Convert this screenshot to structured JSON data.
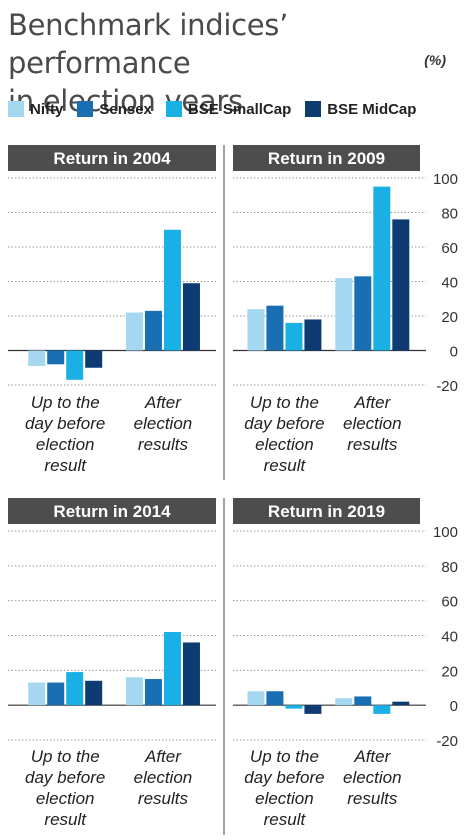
{
  "header": {
    "title_line1": "Benchmark indices’ performance",
    "title_line2": "in election years",
    "unit": "(%)"
  },
  "legend": [
    {
      "label": "Nifty",
      "color": "#a6d7f0"
    },
    {
      "label": "Sensex",
      "color": "#1a6fb3"
    },
    {
      "label": "BSE SmallCap",
      "color": "#1ab0e6"
    },
    {
      "label": "BSE MidCap",
      "color": "#0f3b73"
    }
  ],
  "chart_data": [
    {
      "type": "bar",
      "title": "Return in 2004",
      "categories": [
        "Up to the day before election result",
        "After election results"
      ],
      "category_lines": [
        [
          "Up to the",
          "day before",
          "election",
          "result"
        ],
        [
          "After",
          "election",
          "results"
        ]
      ],
      "series": [
        {
          "name": "Nifty",
          "values": [
            -9,
            22
          ]
        },
        {
          "name": "Sensex",
          "values": [
            -8,
            23
          ]
        },
        {
          "name": "BSE SmallCap",
          "values": [
            -17,
            70
          ]
        },
        {
          "name": "BSE MidCap",
          "values": [
            -10,
            39
          ]
        }
      ],
      "ylim": [
        -20,
        100
      ],
      "yticks": [
        "100",
        "80",
        "60",
        "40",
        "20",
        "0",
        "-20"
      ],
      "grid": true
    },
    {
      "type": "bar",
      "title": "Return in 2009",
      "categories": [
        "Up to the day before election result",
        "After election results"
      ],
      "category_lines": [
        [
          "Up to the",
          "day before",
          "election",
          "result"
        ],
        [
          "After",
          "election",
          "results"
        ]
      ],
      "series": [
        {
          "name": "Nifty",
          "values": [
            24,
            42
          ]
        },
        {
          "name": "Sensex",
          "values": [
            26,
            43
          ]
        },
        {
          "name": "BSE SmallCap",
          "values": [
            16,
            95
          ]
        },
        {
          "name": "BSE MidCap",
          "values": [
            18,
            76
          ]
        }
      ],
      "ylim": [
        -20,
        100
      ],
      "yticks": [
        "100",
        "80",
        "60",
        "40",
        "20",
        "0",
        "-20"
      ],
      "grid": true
    },
    {
      "type": "bar",
      "title": "Return in 2014",
      "categories": [
        "Up to the day before election result",
        "After election results"
      ],
      "category_lines": [
        [
          "Up to the",
          "day before",
          "election",
          "result"
        ],
        [
          "After",
          "election",
          "results"
        ]
      ],
      "series": [
        {
          "name": "Nifty",
          "values": [
            13,
            16
          ]
        },
        {
          "name": "Sensex",
          "values": [
            13,
            15
          ]
        },
        {
          "name": "BSE SmallCap",
          "values": [
            19,
            42
          ]
        },
        {
          "name": "BSE MidCap",
          "values": [
            14,
            36
          ]
        }
      ],
      "ylim": [
        -20,
        100
      ],
      "yticks": [
        "100",
        "80",
        "60",
        "40",
        "20",
        "0",
        "-20"
      ],
      "grid": true
    },
    {
      "type": "bar",
      "title": "Return in 2019",
      "categories": [
        "Up to the day before election result",
        "After election results"
      ],
      "category_lines": [
        [
          "Up to the",
          "day before",
          "election",
          "result"
        ],
        [
          "After",
          "election",
          "results"
        ]
      ],
      "series": [
        {
          "name": "Nifty",
          "values": [
            8,
            4
          ]
        },
        {
          "name": "Sensex",
          "values": [
            8,
            5
          ]
        },
        {
          "name": "BSE SmallCap",
          "values": [
            -2,
            -5
          ]
        },
        {
          "name": "BSE MidCap",
          "values": [
            -5,
            2
          ]
        }
      ],
      "ylim": [
        -20,
        100
      ],
      "yticks": [
        "100",
        "80",
        "60",
        "40",
        "20",
        "0",
        "-20"
      ],
      "grid": true
    }
  ]
}
